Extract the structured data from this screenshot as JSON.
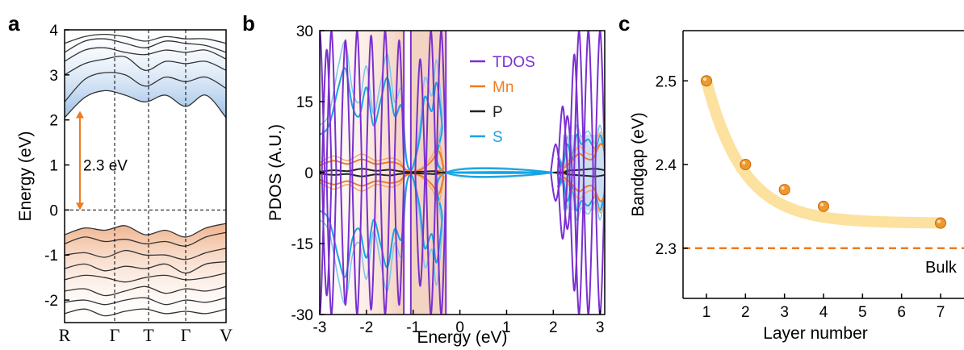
{
  "chart_data": [
    {
      "panel": "a",
      "type": "line",
      "ylabel": "Energy (eV)",
      "ylim": [
        -2.5,
        4
      ],
      "yticks": [
        "-2",
        "-1",
        "0",
        "1",
        "2",
        "3",
        "4"
      ],
      "xticks": [
        "R",
        "Γ",
        "T",
        "Γ",
        "V"
      ],
      "annotation": "2.3 eV",
      "gap_from": 0,
      "gap_to": 2.2,
      "cbm_bands": [
        [
          2.05,
          2.5,
          2.65,
          2.55,
          2.4,
          2.55,
          2.3,
          2.55,
          2.05
        ],
        [
          2.4,
          2.9,
          3.05,
          3.0,
          2.75,
          2.95,
          2.85,
          2.95,
          2.7
        ],
        [
          3.0,
          3.25,
          3.35,
          3.4,
          3.1,
          3.3,
          3.25,
          3.3,
          3.1
        ],
        [
          3.3,
          3.55,
          3.6,
          3.5,
          3.45,
          3.55,
          3.5,
          3.55,
          3.35
        ],
        [
          3.5,
          3.75,
          3.8,
          3.7,
          3.6,
          3.75,
          3.7,
          3.65,
          3.5
        ],
        [
          3.7,
          3.85,
          3.9,
          3.85,
          3.75,
          3.85,
          3.8,
          3.8,
          3.7
        ]
      ],
      "vbm_bands": [
        [
          -0.55,
          -0.4,
          -0.45,
          -0.35,
          -0.55,
          -0.45,
          -0.6,
          -0.4,
          -0.3
        ],
        [
          -0.75,
          -0.6,
          -0.7,
          -0.65,
          -0.75,
          -0.7,
          -0.8,
          -0.6,
          -0.5
        ],
        [
          -1.0,
          -0.95,
          -1.05,
          -0.9,
          -1.0,
          -1.0,
          -1.1,
          -0.95,
          -0.85
        ],
        [
          -1.3,
          -1.2,
          -1.35,
          -1.25,
          -1.3,
          -1.2,
          -1.4,
          -1.2,
          -1.15
        ],
        [
          -1.55,
          -1.45,
          -1.5,
          -1.6,
          -1.5,
          -1.45,
          -1.55,
          -1.5,
          -1.4
        ],
        [
          -1.8,
          -1.75,
          -1.9,
          -1.8,
          -1.7,
          -1.85,
          -1.75,
          -1.8,
          -1.7
        ],
        [
          -2.05,
          -2.0,
          -2.1,
          -2.0,
          -1.95,
          -2.1,
          -2.0,
          -2.05,
          -1.95
        ],
        [
          -2.3,
          -2.2,
          -2.35,
          -2.25,
          -2.2,
          -2.3,
          -2.25,
          -2.3,
          -2.2
        ]
      ]
    },
    {
      "panel": "b",
      "type": "line",
      "xlabel": "Energy (eV)",
      "ylabel": "PDOS (A.U.)",
      "xlim": [
        -3,
        3.1
      ],
      "ylim": [
        -30,
        30
      ],
      "xticks": [
        "-3",
        "-2",
        "-1",
        "0",
        "1",
        "2",
        "3"
      ],
      "yticks": [
        "-30",
        "-15",
        "0",
        "15",
        "30"
      ],
      "series": [
        {
          "name": "TDOS",
          "color": "#7b2fd0"
        },
        {
          "name": "Mn",
          "color": "#ee7b22"
        },
        {
          "name": "P",
          "color": "#222222"
        },
        {
          "name": "S",
          "color": "#1aa3e0"
        }
      ],
      "s_curve": [
        [
          -3,
          8
        ],
        [
          -2.8,
          10
        ],
        [
          -2.6,
          18
        ],
        [
          -2.45,
          22
        ],
        [
          -2.3,
          14
        ],
        [
          -2.15,
          12
        ],
        [
          -2.0,
          18
        ],
        [
          -1.85,
          10
        ],
        [
          -1.7,
          15
        ],
        [
          -1.55,
          20
        ],
        [
          -1.4,
          12
        ],
        [
          -1.25,
          14
        ],
        [
          -1.15,
          3
        ],
        [
          -1.05,
          0.5
        ],
        [
          -0.95,
          3
        ],
        [
          -0.85,
          8
        ],
        [
          -0.75,
          16
        ],
        [
          -0.6,
          13
        ],
        [
          -0.5,
          19
        ],
        [
          -0.38,
          10
        ],
        [
          -0.3,
          0
        ],
        [
          2.0,
          0
        ],
        [
          2.1,
          3
        ],
        [
          2.2,
          1
        ],
        [
          2.3,
          6
        ],
        [
          2.4,
          3
        ],
        [
          2.5,
          8
        ],
        [
          2.6,
          6
        ],
        [
          2.75,
          7
        ],
        [
          2.9,
          5
        ],
        [
          3.0,
          8
        ],
        [
          3.1,
          4
        ]
      ],
      "mn_curve": [
        [
          -3,
          1.5
        ],
        [
          -2.7,
          2.5
        ],
        [
          -2.4,
          1.8
        ],
        [
          -2.1,
          2.8
        ],
        [
          -1.8,
          1.8
        ],
        [
          -1.5,
          2.2
        ],
        [
          -1.3,
          1.8
        ],
        [
          -1.15,
          0.5
        ],
        [
          -1.0,
          0.2
        ],
        [
          -0.8,
          0.8
        ],
        [
          -0.6,
          2.5
        ],
        [
          -0.45,
          4.5
        ],
        [
          -0.35,
          1
        ],
        [
          -0.3,
          0
        ],
        [
          2.0,
          0
        ],
        [
          2.2,
          0.8
        ],
        [
          2.4,
          2.5
        ],
        [
          2.55,
          4
        ],
        [
          2.7,
          3
        ],
        [
          2.85,
          3
        ],
        [
          3.0,
          6
        ],
        [
          3.1,
          5
        ]
      ],
      "p_curve": [
        [
          -3,
          0.2
        ],
        [
          -2.7,
          0.5
        ],
        [
          -2.4,
          0.3
        ],
        [
          -2.1,
          0.8
        ],
        [
          -1.8,
          0.4
        ],
        [
          -1.5,
          0.6
        ],
        [
          -1.3,
          0.3
        ],
        [
          -1.1,
          0.1
        ],
        [
          -0.8,
          0.2
        ],
        [
          -0.5,
          0.3
        ],
        [
          -0.3,
          0
        ],
        [
          2.0,
          0
        ],
        [
          2.3,
          0.4
        ],
        [
          2.6,
          0.6
        ],
        [
          2.9,
          0.8
        ],
        [
          3.1,
          0.5
        ]
      ],
      "tdos_peaks": [
        [
          -3.0,
          30
        ],
        [
          -2.85,
          26
        ],
        [
          -2.75,
          30
        ],
        [
          -2.45,
          28
        ],
        [
          -2.2,
          30
        ],
        [
          -1.9,
          29
        ],
        [
          -1.6,
          30
        ],
        [
          -1.3,
          28
        ],
        [
          -0.85,
          24
        ],
        [
          -0.62,
          30
        ],
        [
          -0.4,
          30
        ],
        [
          2.05,
          6
        ],
        [
          2.2,
          14
        ],
        [
          2.3,
          12
        ],
        [
          2.45,
          25
        ],
        [
          2.55,
          30
        ],
        [
          2.75,
          30
        ],
        [
          3.0,
          30
        ]
      ]
    },
    {
      "panel": "c",
      "type": "scatter",
      "xlabel": "Layer number",
      "ylabel": "Bandgap (eV)",
      "xlim": [
        0.4,
        7.6
      ],
      "ylim": [
        2.24,
        2.56
      ],
      "xticks": [
        "1",
        "2",
        "3",
        "4",
        "5",
        "6",
        "7"
      ],
      "yticks": [
        "2.3",
        "2.4",
        "2.5"
      ],
      "x": [
        1,
        2,
        3,
        4,
        7
      ],
      "y": [
        2.5,
        2.4,
        2.37,
        2.35,
        2.33
      ],
      "bulk_value": 2.3,
      "bulk_label": "Bulk"
    }
  ],
  "panel_labels": {
    "a": "a",
    "b": "b",
    "c": "c"
  },
  "colors": {
    "cbm_fill": "#a9c9ea",
    "vbm_fill": "#f0b896",
    "gap_arrow": "#ee7b22",
    "bulk_line": "#ee7b22",
    "marker": "#f0982b",
    "fit_band": "#fbdc8e"
  }
}
